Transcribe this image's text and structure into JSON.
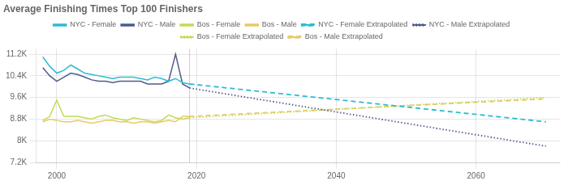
{
  "chart_data": {
    "type": "line",
    "title": "Average Finishing Times Top 100 Finishers",
    "xlim": [
      1997,
      2072
    ],
    "xticks": [
      2000,
      2020,
      2040,
      2060
    ],
    "ylim": [
      7200,
      11400
    ],
    "yticks": [
      {
        "value": 7200,
        "label": "7.2K"
      },
      {
        "value": 8000,
        "label": "8K"
      },
      {
        "value": 8800,
        "label": "8.8K"
      },
      {
        "value": 9600,
        "label": "9.6K"
      },
      {
        "value": 10400,
        "label": "10.4K"
      },
      {
        "value": 11200,
        "label": "11.2K"
      }
    ],
    "grid": true,
    "legend": "top",
    "vertical_lines": [
      2019
    ],
    "series": [
      {
        "name": "NYC - Female",
        "color": "#2bbcd4",
        "line_style": "solid",
        "x": [
          1998,
          1999,
          2000,
          2001,
          2002,
          2003,
          2004,
          2005,
          2006,
          2007,
          2008,
          2009,
          2010,
          2011,
          2012,
          2013,
          2014,
          2015,
          2016,
          2017,
          2018,
          2019
        ],
        "values": [
          11100,
          10750,
          10500,
          10600,
          10800,
          10650,
          10500,
          10450,
          10400,
          10350,
          10300,
          10350,
          10350,
          10350,
          10300,
          10250,
          10350,
          10300,
          10200,
          10300,
          10150,
          10100
        ]
      },
      {
        "name": "NYC - Male",
        "color": "#4f5b8a",
        "line_style": "solid",
        "x": [
          1998,
          1999,
          2000,
          2001,
          2002,
          2003,
          2004,
          2005,
          2006,
          2007,
          2008,
          2009,
          2010,
          2011,
          2012,
          2013,
          2014,
          2015,
          2016,
          2017,
          2018,
          2019
        ],
        "values": [
          10700,
          10400,
          10200,
          10350,
          10500,
          10450,
          10350,
          10250,
          10200,
          10200,
          10150,
          10200,
          10200,
          10200,
          10200,
          10100,
          10100,
          10100,
          10200,
          11200,
          10100,
          9950
        ]
      },
      {
        "name": "Bos - Female",
        "color": "#c5d955",
        "line_style": "solid",
        "x": [
          1998,
          1999,
          2000,
          2001,
          2002,
          2003,
          2004,
          2005,
          2006,
          2007,
          2008,
          2009,
          2010,
          2011,
          2012,
          2013,
          2014,
          2015,
          2016,
          2017,
          2018,
          2019
        ],
        "values": [
          8750,
          8900,
          9500,
          8900,
          8900,
          8900,
          8850,
          8800,
          8900,
          8950,
          8850,
          8800,
          8750,
          8850,
          8800,
          8750,
          8700,
          8750,
          8950,
          8850,
          8800,
          8850
        ]
      },
      {
        "name": "Bos - Male",
        "color": "#e8c96a",
        "line_style": "solid",
        "x": [
          1998,
          1999,
          2000,
          2001,
          2002,
          2003,
          2004,
          2005,
          2006,
          2007,
          2008,
          2009,
          2010,
          2011,
          2012,
          2013,
          2014,
          2015,
          2016,
          2017,
          2018,
          2019
        ],
        "values": [
          8700,
          8800,
          8750,
          8700,
          8700,
          8750,
          8700,
          8650,
          8700,
          8750,
          8750,
          8700,
          8700,
          8650,
          8700,
          8700,
          8650,
          8700,
          8750,
          8700,
          8900,
          8900
        ]
      },
      {
        "name": "NYC - Female Extrapolated",
        "color": "#2bbcd4",
        "line_style": "dashed",
        "x": [
          2019,
          2070
        ],
        "values": [
          10100,
          8700
        ]
      },
      {
        "name": "NYC - Male Extrapolated",
        "color": "#4f5b8a",
        "line_style": "dotted",
        "x": [
          2019,
          2070
        ],
        "values": [
          9950,
          7800
        ]
      },
      {
        "name": "Bos - Female Extrapolated",
        "color": "#c5d955",
        "line_style": "dotted",
        "x": [
          2019,
          2070
        ],
        "values": [
          8850,
          9600
        ]
      },
      {
        "name": "Bos - Male Extrapolated",
        "color": "#e8c96a",
        "line_style": "dashed",
        "x": [
          2019,
          2070
        ],
        "values": [
          8900,
          9550
        ]
      }
    ]
  }
}
